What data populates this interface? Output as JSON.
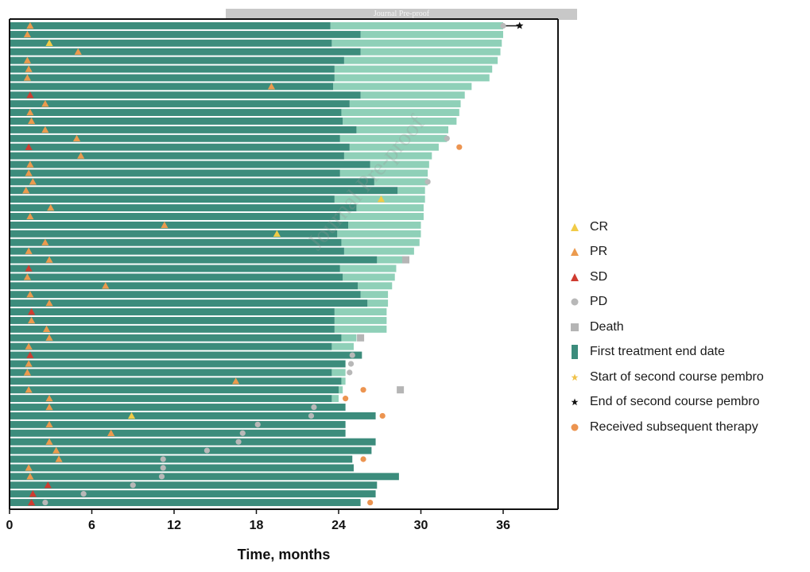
{
  "banner_text": "Journal Pre-proof",
  "watermark_text": "Journal Pre-proof",
  "colors": {
    "first_treatment": "#3c8c7c",
    "after_first": "#8fd0b8",
    "CR": "#f1cb47",
    "PR": "#eb9a4e",
    "SD": "#cf3b30",
    "PD": "#b8b8b8",
    "Death": "#b5b5b5",
    "subsequent": "#ec9450",
    "start_second": "#f0c24a",
    "end_second": "#111111"
  },
  "chart_data": {
    "type": "swimmer",
    "xlabel": "Time, months",
    "xlim": [
      0,
      40
    ],
    "xticks": [
      0,
      6,
      12,
      18,
      24,
      30,
      36
    ],
    "tick_labels": [
      "0",
      "6",
      "12",
      "18",
      "24",
      "30",
      "36"
    ],
    "legend": [
      {
        "key": "CR",
        "label": "CR",
        "shape": "triangle"
      },
      {
        "key": "PR",
        "label": "PR",
        "shape": "triangle"
      },
      {
        "key": "SD",
        "label": "SD",
        "shape": "triangle"
      },
      {
        "key": "PD",
        "label": "PD",
        "shape": "circle"
      },
      {
        "key": "Death",
        "label": "Death",
        "shape": "square"
      },
      {
        "key": "first_treatment",
        "label": "First treatment end date",
        "shape": "bar"
      },
      {
        "key": "start_second",
        "label": "Start of second course pembro",
        "shape": "star"
      },
      {
        "key": "end_second",
        "label": "End of second course pembro",
        "shape": "star"
      },
      {
        "key": "subsequent",
        "label": "Received subsequent therapy",
        "shape": "circle"
      }
    ],
    "patients": [
      {
        "first_end": 23.4,
        "total": 36.0,
        "best_response": "PR",
        "response_time": 1.5,
        "pd": 36.0,
        "second_course_end": 37.2
      },
      {
        "first_end": 25.6,
        "total": 36.0,
        "best_response": "PR",
        "response_time": 1.3
      },
      {
        "first_end": 23.5,
        "total": 35.9,
        "best_response": "CR",
        "response_time": 2.9
      },
      {
        "first_end": 25.6,
        "total": 35.8,
        "best_response": "PR",
        "response_time": 5.0
      },
      {
        "first_end": 24.4,
        "total": 35.6,
        "best_response": "PR",
        "response_time": 1.3
      },
      {
        "first_end": 23.7,
        "total": 35.2,
        "best_response": "PR",
        "response_time": 1.4
      },
      {
        "first_end": 23.7,
        "total": 35.0,
        "best_response": "PR",
        "response_time": 1.3
      },
      {
        "first_end": 23.6,
        "total": 33.7,
        "best_response": "PR",
        "response_time": 19.1
      },
      {
        "first_end": 25.6,
        "total": 33.2,
        "best_response": "SD",
        "response_time": 1.5
      },
      {
        "first_end": 24.8,
        "total": 32.9,
        "best_response": "PR",
        "response_time": 2.6
      },
      {
        "first_end": 24.2,
        "total": 32.8,
        "best_response": "PR",
        "response_time": 1.5
      },
      {
        "first_end": 24.3,
        "total": 32.6,
        "best_response": "PR",
        "response_time": 1.6
      },
      {
        "first_end": 25.3,
        "total": 32.0,
        "best_response": "PR",
        "response_time": 2.6
      },
      {
        "first_end": 24.1,
        "total": 31.9,
        "best_response": "PR",
        "response_time": 4.9,
        "pd": 31.9
      },
      {
        "first_end": 24.8,
        "total": 31.3,
        "best_response": "SD",
        "response_time": 1.4,
        "subsequent": 32.8
      },
      {
        "first_end": 24.4,
        "total": 30.8,
        "best_response": "PR",
        "response_time": 5.2
      },
      {
        "first_end": 26.3,
        "total": 30.6,
        "best_response": "PR",
        "response_time": 1.5
      },
      {
        "first_end": 24.1,
        "total": 30.5,
        "best_response": "PR",
        "response_time": 1.4
      },
      {
        "first_end": 26.6,
        "total": 30.5,
        "best_response": "PR",
        "response_time": 1.7,
        "pd": 30.5
      },
      {
        "first_end": 28.3,
        "total": 30.3,
        "best_response": "PR",
        "response_time": 1.2
      },
      {
        "first_end": 23.7,
        "total": 30.3,
        "best_response": "CR",
        "response_time": 27.1
      },
      {
        "first_end": 25.3,
        "total": 30.2,
        "best_response": "PR",
        "response_time": 3.0
      },
      {
        "first_end": 24.1,
        "total": 30.2,
        "best_response": "PR",
        "response_time": 1.5
      },
      {
        "first_end": 24.7,
        "total": 30.0,
        "best_response": "PR",
        "response_time": 11.3
      },
      {
        "first_end": 23.9,
        "total": 30.0,
        "best_response": "CR",
        "response_time": 19.5
      },
      {
        "first_end": 24.2,
        "total": 29.9,
        "best_response": "PR",
        "response_time": 2.6
      },
      {
        "first_end": 24.4,
        "total": 29.5,
        "best_response": "PR",
        "response_time": 1.4
      },
      {
        "first_end": 26.8,
        "total": 28.8,
        "best_response": "PR",
        "response_time": 2.9,
        "death": 28.9
      },
      {
        "first_end": 24.1,
        "total": 28.2,
        "best_response": "SD",
        "response_time": 1.4
      },
      {
        "first_end": 24.3,
        "total": 28.1,
        "best_response": "PR",
        "response_time": 1.3
      },
      {
        "first_end": 25.4,
        "total": 27.9,
        "best_response": "PR",
        "response_time": 7.0
      },
      {
        "first_end": 25.6,
        "total": 27.6,
        "best_response": "PR",
        "response_time": 1.5
      },
      {
        "first_end": 26.1,
        "total": 27.6,
        "best_response": "PR",
        "response_time": 2.9
      },
      {
        "first_end": 23.7,
        "total": 27.5,
        "best_response": "SD",
        "response_time": 1.6
      },
      {
        "first_end": 23.7,
        "total": 27.5,
        "best_response": "PR",
        "response_time": 1.6
      },
      {
        "first_end": 23.7,
        "total": 27.5,
        "best_response": "PR",
        "response_time": 2.7
      },
      {
        "first_end": 24.2,
        "total": 25.3,
        "best_response": "PR",
        "response_time": 2.9,
        "death": 25.6
      },
      {
        "first_end": 23.5,
        "total": 25.1,
        "best_response": "PR",
        "response_time": 1.4
      },
      {
        "first_end": 25.7,
        "total": 25.7,
        "best_response": "SD",
        "response_time": 1.5,
        "pd": 25.0
      },
      {
        "first_end": 24.5,
        "total": 24.5,
        "best_response": "PR",
        "response_time": 1.4,
        "pd": 24.9
      },
      {
        "first_end": 23.5,
        "total": 24.5,
        "best_response": "PR",
        "response_time": 1.3,
        "pd": 24.8
      },
      {
        "first_end": 24.2,
        "total": 24.5,
        "best_response": "PR",
        "response_time": 16.5
      },
      {
        "first_end": 24.0,
        "total": 24.3,
        "best_response": "PR",
        "response_time": 1.4,
        "subsequent": 25.8,
        "death": 28.5
      },
      {
        "first_end": 23.5,
        "total": 24.0,
        "best_response": "PR",
        "response_time": 2.9,
        "subsequent": 24.5
      },
      {
        "first_end": 24.5,
        "total": 24.5,
        "best_response": "PR",
        "response_time": 2.9,
        "pd": 22.2
      },
      {
        "first_end": 26.7,
        "total": 26.7,
        "best_response": "CR",
        "response_time": 8.9,
        "pd": 22.0,
        "subsequent": 27.2
      },
      {
        "first_end": 24.5,
        "total": 24.5,
        "best_response": "PR",
        "response_time": 2.9,
        "pd": 18.1
      },
      {
        "first_end": 24.5,
        "total": 24.5,
        "best_response": "PR",
        "response_time": 7.4,
        "pd": 17.0
      },
      {
        "first_end": 26.7,
        "total": 26.7,
        "best_response": "PR",
        "response_time": 2.9,
        "pd": 16.7
      },
      {
        "first_end": 26.4,
        "total": 26.4,
        "best_response": "PR",
        "response_time": 3.4,
        "pd": 14.4
      },
      {
        "first_end": 25.0,
        "total": 25.0,
        "best_response": "PR",
        "response_time": 3.6,
        "pd": 11.2,
        "subsequent": 25.8
      },
      {
        "first_end": 25.1,
        "total": 25.1,
        "best_response": "PR",
        "response_time": 1.4,
        "pd": 11.2
      },
      {
        "first_end": 28.4,
        "total": 28.4,
        "best_response": "PR",
        "response_time": 1.5,
        "pd": 11.1
      },
      {
        "first_end": 26.8,
        "total": 26.8,
        "best_response": "SD",
        "response_time": 2.8,
        "pd": 9.0
      },
      {
        "first_end": 26.7,
        "total": 26.7,
        "best_response": "SD",
        "response_time": 1.7,
        "pd": 5.4
      },
      {
        "first_end": 25.6,
        "total": 25.6,
        "best_response": "SD",
        "response_time": 1.6,
        "pd": 2.6,
        "subsequent": 26.3
      }
    ]
  }
}
